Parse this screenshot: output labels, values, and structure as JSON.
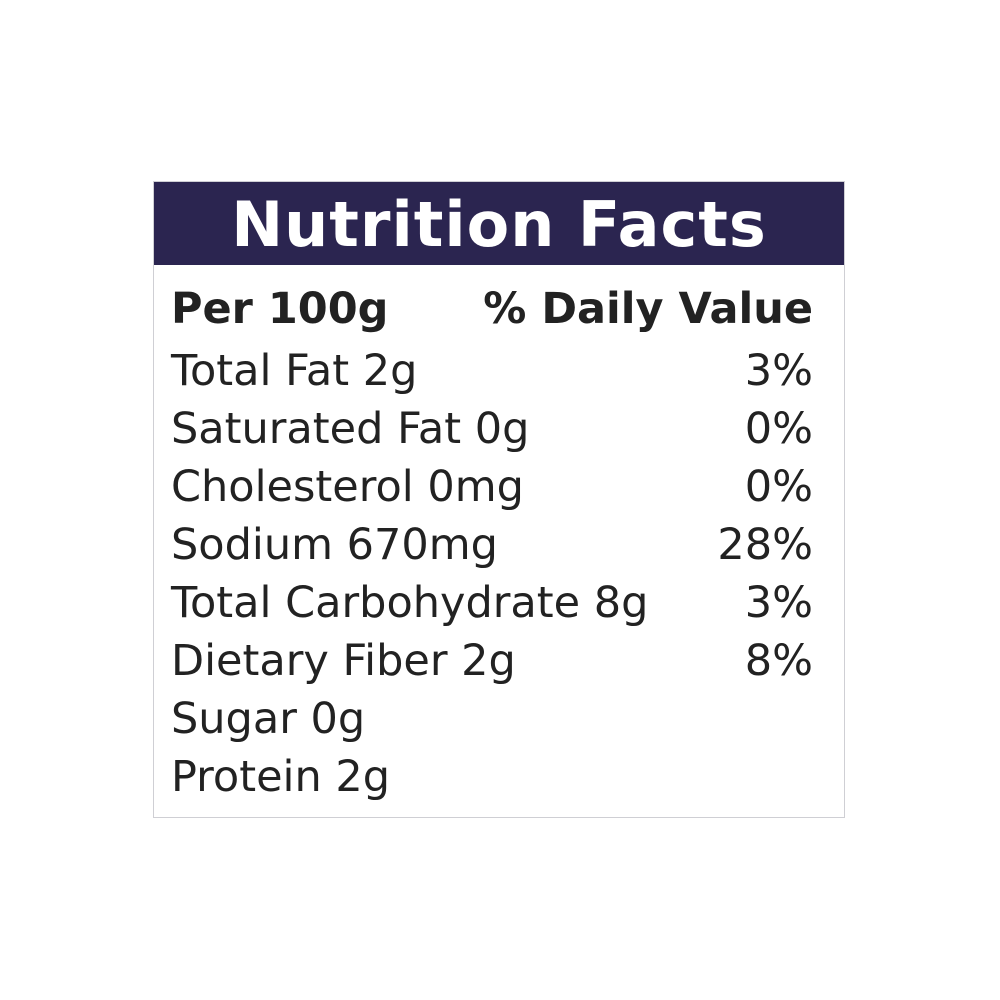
{
  "title": "Nutrition Facts",
  "header": {
    "left": "Per 100g",
    "right": "% Daily Value"
  },
  "rows": [
    {
      "label": "Total Fat 2g",
      "dv": "3%"
    },
    {
      "label": "Saturated Fat 0g",
      "dv": "0%"
    },
    {
      "label": "Cholesterol 0mg",
      "dv": "0%"
    },
    {
      "label": "Sodium 670mg",
      "dv": "28%"
    },
    {
      "label": "Total Carbohydrate 8g",
      "dv": "3%"
    },
    {
      "label": "Dietary Fiber 2g",
      "dv": "8%"
    },
    {
      "label": "Sugar 0g",
      "dv": ""
    },
    {
      "label": "Protein 2g",
      "dv": ""
    }
  ],
  "colors": {
    "header_bg": "#2b2550",
    "text": "#222222"
  }
}
